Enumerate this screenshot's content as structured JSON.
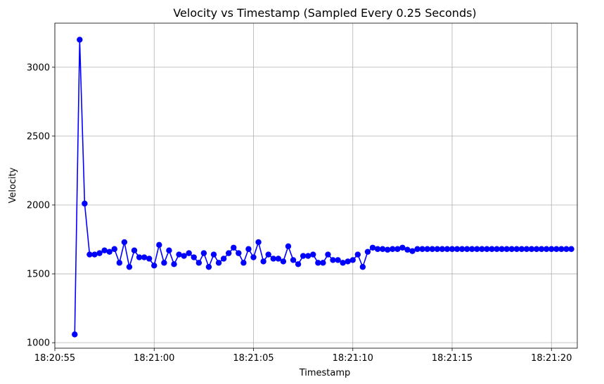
{
  "chart_data": {
    "type": "line",
    "title": "Velocity vs Timestamp (Sampled Every 0.25 Seconds)",
    "xlabel": "Timestamp",
    "ylabel": "Velocity",
    "x_start": "18:20:56.00",
    "x_step_seconds": 0.25,
    "xlim_seconds": [
      -1.0,
      25.3
    ],
    "ylim": [
      960,
      3320
    ],
    "x_ticks": [
      "18:20:55",
      "18:21:00",
      "18:21:05",
      "18:21:10",
      "18:21:15",
      "18:21:20"
    ],
    "y_ticks": [
      1000,
      1500,
      2000,
      2500,
      3000
    ],
    "grid": true,
    "series": [
      {
        "color": "#0000ff",
        "marker": "circle",
        "values": [
          1060,
          3200,
          2010,
          1640,
          1640,
          1650,
          1670,
          1660,
          1680,
          1580,
          1730,
          1550,
          1670,
          1620,
          1620,
          1610,
          1560,
          1710,
          1580,
          1670,
          1570,
          1640,
          1630,
          1650,
          1620,
          1580,
          1650,
          1550,
          1640,
          1580,
          1610,
          1650,
          1690,
          1650,
          1580,
          1680,
          1620,
          1730,
          1590,
          1640,
          1610,
          1610,
          1590,
          1700,
          1600,
          1570,
          1630,
          1630,
          1640,
          1580,
          1580,
          1640,
          1600,
          1600,
          1580,
          1590,
          1600,
          1640,
          1550,
          1660,
          1690,
          1680,
          1680,
          1675,
          1680,
          1680,
          1690,
          1675,
          1665,
          1680,
          1680,
          1680,
          1680,
          1680,
          1680,
          1680,
          1680,
          1680,
          1680,
          1680,
          1680,
          1680,
          1680,
          1680,
          1680,
          1680,
          1680,
          1680,
          1680,
          1680,
          1680,
          1680,
          1680,
          1680,
          1680,
          1680,
          1680,
          1680,
          1680,
          1680,
          1680
        ]
      }
    ]
  }
}
